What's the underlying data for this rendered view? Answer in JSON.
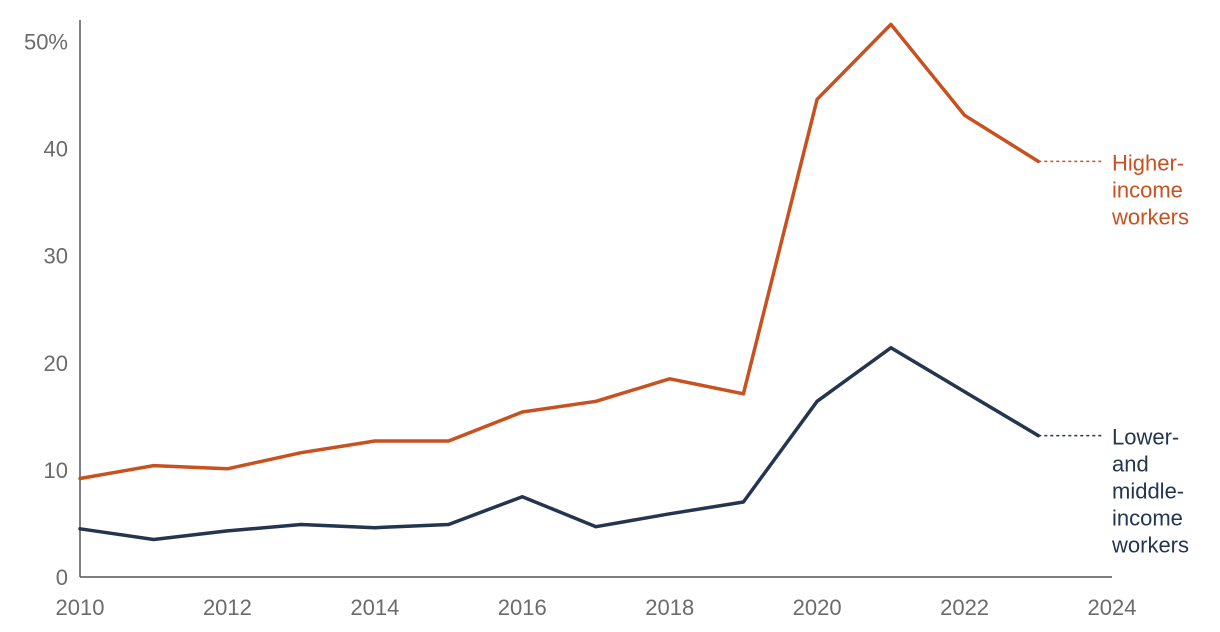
{
  "chart_data": {
    "type": "line",
    "title": "",
    "xlabel": "",
    "ylabel": "",
    "xlim": [
      2010,
      2024
    ],
    "ylim": [
      0,
      52
    ],
    "x_ticks": [
      {
        "value": 2010,
        "label": "2010"
      },
      {
        "value": 2012,
        "label": "2012"
      },
      {
        "value": 2014,
        "label": "2014"
      },
      {
        "value": 2016,
        "label": "2016"
      },
      {
        "value": 2018,
        "label": "2018"
      },
      {
        "value": 2020,
        "label": "2020"
      },
      {
        "value": 2022,
        "label": "2022"
      },
      {
        "value": 2024,
        "label": "2024"
      }
    ],
    "y_ticks": [
      {
        "value": 0,
        "label": "0"
      },
      {
        "value": 10,
        "label": "10"
      },
      {
        "value": 20,
        "label": "20"
      },
      {
        "value": 30,
        "label": "30"
      },
      {
        "value": 40,
        "label": "40"
      },
      {
        "value": 50,
        "label": "50%"
      }
    ],
    "grid": false,
    "x": [
      2010,
      2011,
      2012,
      2013,
      2014,
      2015,
      2016,
      2017,
      2018,
      2019,
      2020,
      2021,
      2022,
      2023
    ],
    "series": [
      {
        "name": "Higher-income workers",
        "label_lines": [
          "Higher-",
          "income",
          "workers"
        ],
        "color": "#c8511f",
        "values": [
          9.2,
          10.4,
          10.1,
          11.6,
          12.7,
          12.7,
          15.4,
          16.4,
          18.5,
          17.1,
          44.6,
          51.6,
          43.1,
          38.8
        ]
      },
      {
        "name": "Lower- and middle-income workers",
        "label_lines": [
          "Lower-",
          "and",
          "middle-",
          "income",
          "workers"
        ],
        "color": "#243550",
        "values": [
          4.5,
          3.5,
          4.3,
          4.9,
          4.6,
          4.9,
          7.5,
          4.7,
          5.9,
          7.0,
          16.4,
          21.4,
          17.3,
          13.2
        ]
      }
    ]
  }
}
